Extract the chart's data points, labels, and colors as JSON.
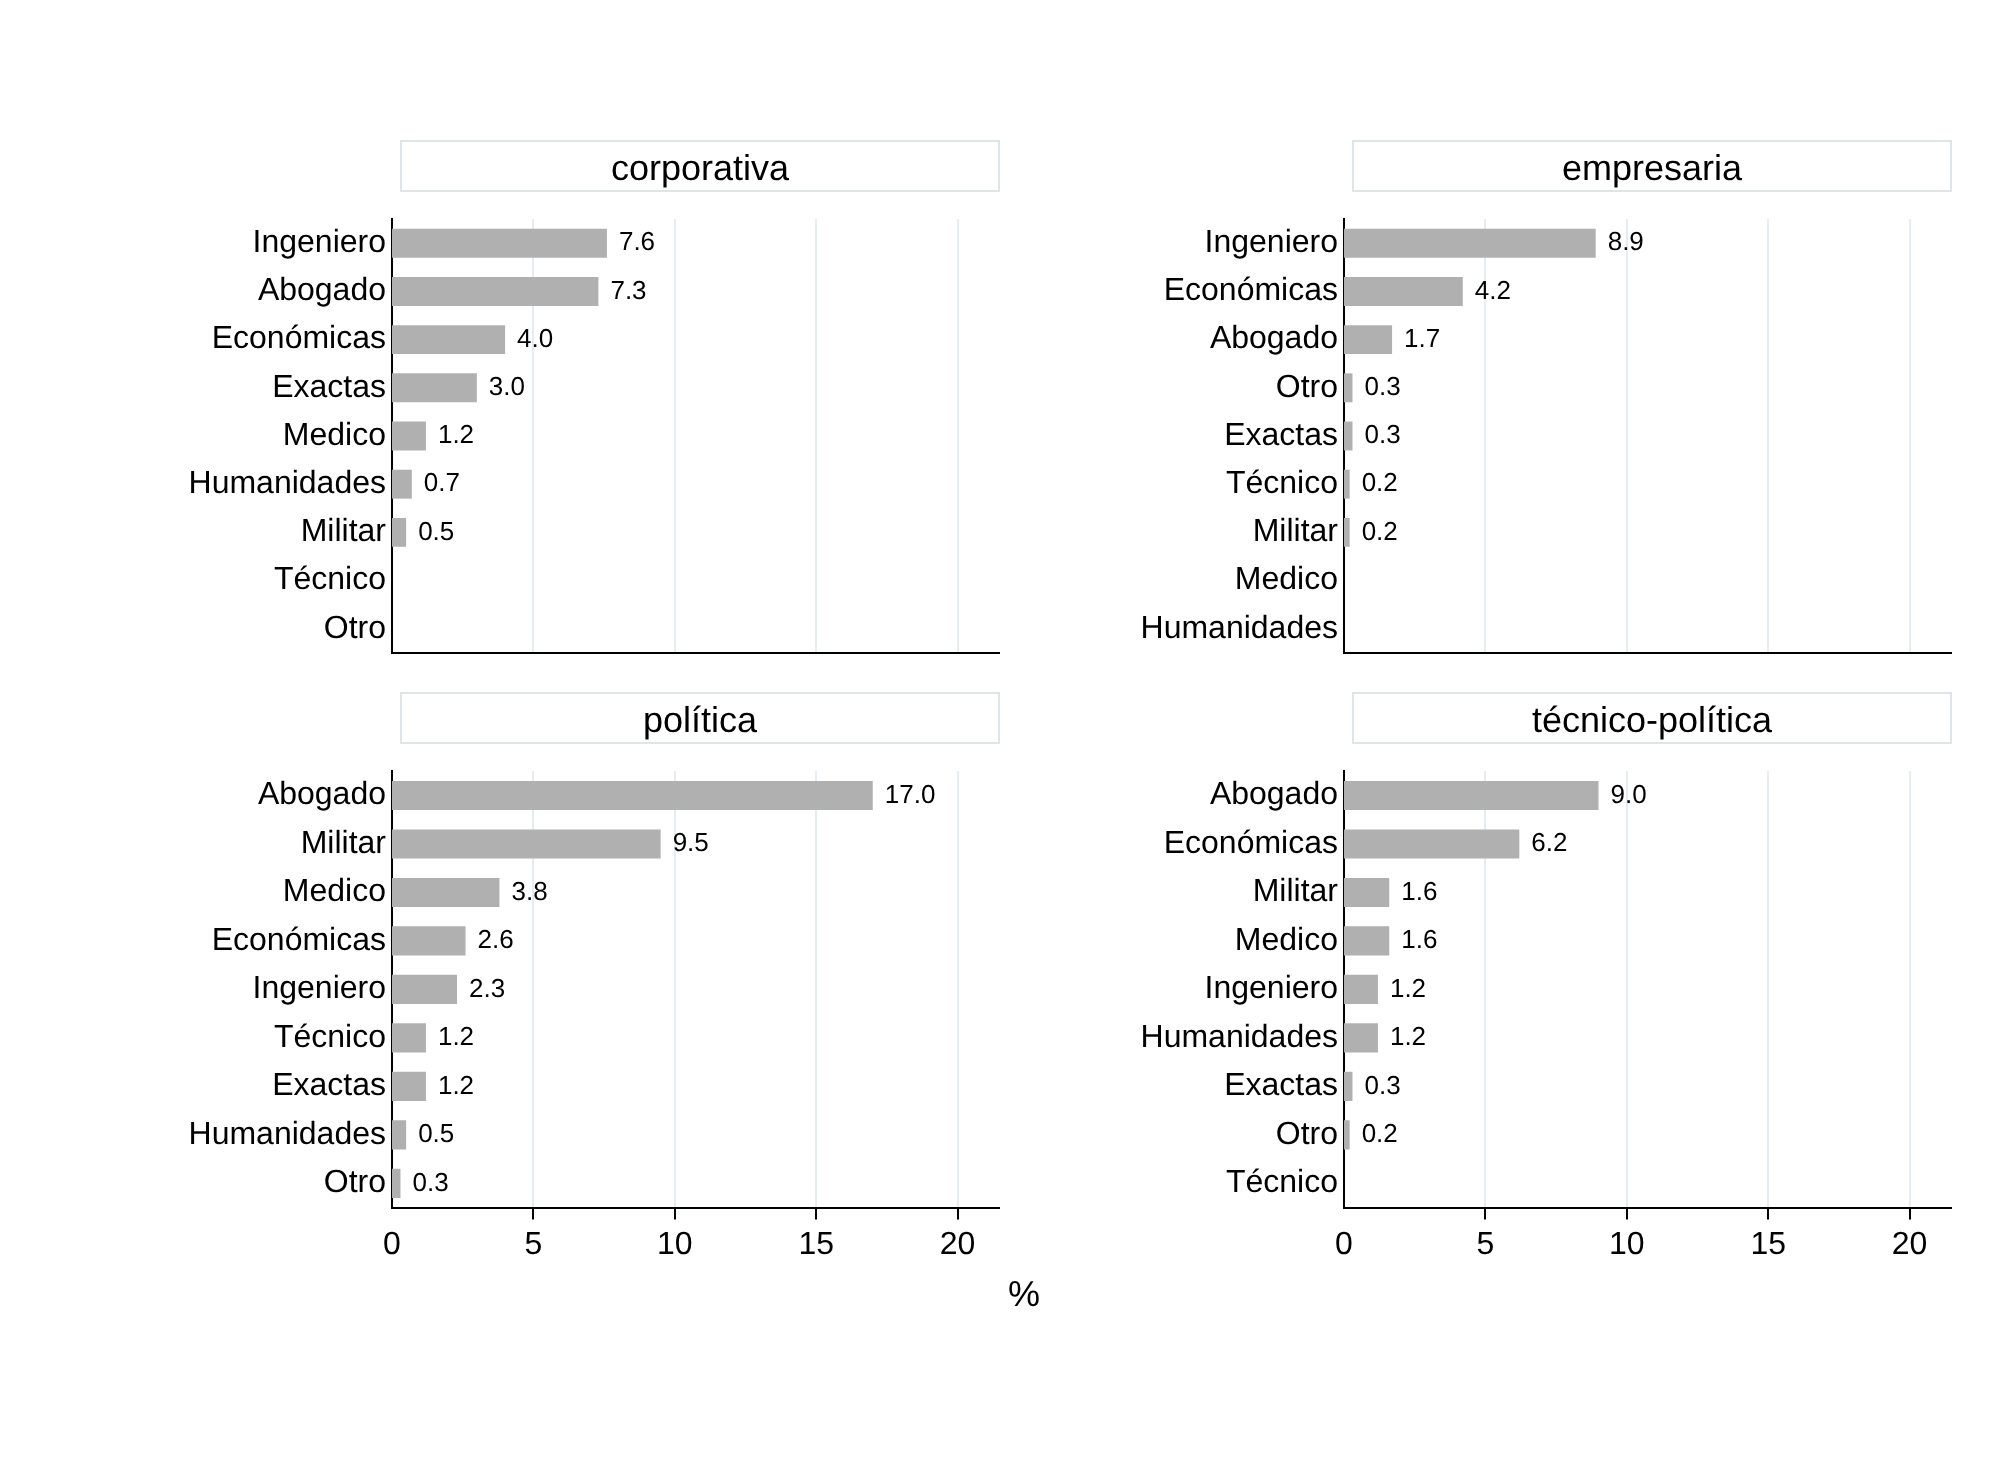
{
  "chart_data": [
    {
      "type": "bar",
      "orientation": "horizontal",
      "title": "corporativa",
      "categories": [
        "Ingeniero",
        "Abogado",
        "Económicas",
        "Exactas",
        "Medico",
        "Humanidades",
        "Militar",
        "Técnico",
        "Otro"
      ],
      "values": [
        7.6,
        7.3,
        4.0,
        3.0,
        1.2,
        0.7,
        0.5,
        null,
        null
      ],
      "value_labels": [
        "7.6",
        "7.3",
        "4.0",
        "3.0",
        "1.2",
        "0.7",
        "0.5",
        null,
        null
      ],
      "color": "#b0b0b0",
      "xlim": [
        0,
        21.5
      ],
      "xticks": [
        0,
        5,
        10,
        15,
        20
      ],
      "grid": "x",
      "tick_labels": "y"
    },
    {
      "type": "bar",
      "orientation": "horizontal",
      "title": "empresaria",
      "categories": [
        "Ingeniero",
        "Económicas",
        "Abogado",
        "Otro",
        "Exactas",
        "Técnico",
        "Militar",
        "Medico",
        "Humanidades"
      ],
      "values": [
        8.9,
        4.2,
        1.7,
        0.3,
        0.3,
        0.2,
        0.2,
        null,
        null
      ],
      "value_labels": [
        "8.9",
        "4.2",
        "1.7",
        "0.3",
        "0.3",
        "0.2",
        "0.2",
        null,
        null
      ],
      "color": "#b0b0b0",
      "xlim": [
        0,
        21.5
      ],
      "xticks": [
        0,
        5,
        10,
        15,
        20
      ],
      "grid": "x",
      "tick_labels": "y"
    },
    {
      "type": "bar",
      "orientation": "horizontal",
      "title": "política",
      "xlabel": "%",
      "categories": [
        "Abogado",
        "Militar",
        "Medico",
        "Económicas",
        "Ingeniero",
        "Técnico",
        "Exactas",
        "Humanidades",
        "Otro"
      ],
      "values": [
        17.0,
        9.5,
        3.8,
        2.6,
        2.3,
        1.2,
        1.2,
        0.5,
        0.3
      ],
      "value_labels": [
        "17.0",
        "9.5",
        "3.8",
        "2.6",
        "2.3",
        "1.2",
        "1.2",
        "0.5",
        "0.3"
      ],
      "color": "#b0b0b0",
      "xlim": [
        0,
        21.5
      ],
      "xticks": [
        0,
        5,
        10,
        15,
        20
      ],
      "grid": "x"
    },
    {
      "type": "bar",
      "orientation": "horizontal",
      "title": "técnico-política",
      "categories": [
        "Abogado",
        "Económicas",
        "Militar",
        "Medico",
        "Ingeniero",
        "Humanidades",
        "Exactas",
        "Otro",
        "Técnico"
      ],
      "values": [
        9.0,
        6.2,
        1.6,
        1.6,
        1.2,
        1.2,
        0.3,
        0.2,
        null
      ],
      "value_labels": [
        "9.0",
        "6.2",
        "1.6",
        "1.6",
        "1.2",
        "1.2",
        "0.3",
        "0.2",
        null
      ],
      "color": "#b0b0b0",
      "xlim": [
        0,
        21.5
      ],
      "xticks": [
        0,
        5,
        10,
        15,
        20
      ],
      "grid": "x"
    }
  ]
}
